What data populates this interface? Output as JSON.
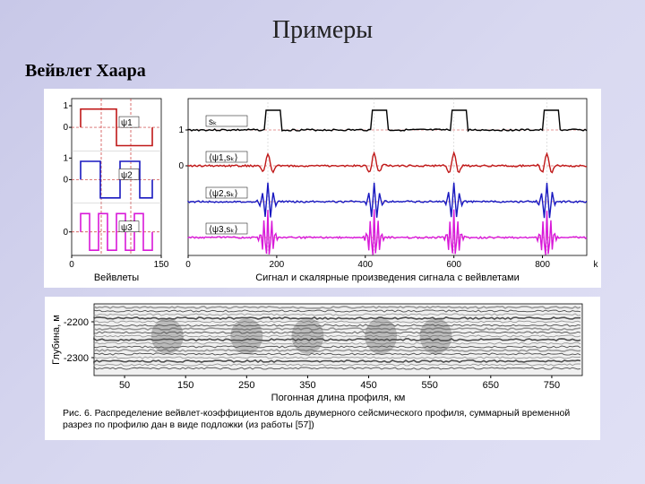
{
  "title": "Примеры",
  "subtitle": "Вейвлет Хаара",
  "colors": {
    "bg": "#ffffff",
    "axis": "#000000",
    "grid": "#c0c0c0",
    "dash": "#c83030",
    "s_k": "#000000",
    "psi1": "#c01818",
    "psi2": "#1818c0",
    "psi3": "#d818d8"
  },
  "left_panel": {
    "caption": "Вейвлеты",
    "x_ticks": [
      0,
      150
    ],
    "panels": [
      {
        "label": "ψ1",
        "ylim": [
          -1,
          1
        ],
        "yticks": [
          0,
          1
        ],
        "color_key": "psi1",
        "shape": "haar1"
      },
      {
        "label": "ψ2",
        "ylim": [
          -1,
          1
        ],
        "yticks": [
          0,
          1
        ],
        "color_key": "psi2",
        "shape": "haar2"
      },
      {
        "label": "ψ3",
        "ylim": [
          -1,
          1
        ],
        "yticks": [
          0
        ],
        "color_key": "psi3",
        "shape": "haar3"
      }
    ]
  },
  "right_panel": {
    "caption": "Сигнал и скалярные произведения сигнала с вейвлетами",
    "xlim": [
      0,
      900
    ],
    "xticks": [
      0,
      200,
      400,
      600,
      800
    ],
    "xlabel": "k",
    "series": [
      {
        "label": "s_k",
        "label_tex": "sₖ",
        "color_key": "s_k",
        "baseline": 35,
        "amp": 22,
        "type": "pulse",
        "y_tick": "1"
      },
      {
        "label": "psi1sk",
        "label_tex": "⟨ψ1,sₖ⟩",
        "color_key": "psi1",
        "baseline": 75,
        "amp": 14,
        "type": "wavelet",
        "y_tick": "0"
      },
      {
        "label": "psi2sk",
        "label_tex": "⟨ψ2,sₖ⟩",
        "color_key": "psi2",
        "baseline": 115,
        "amp": 18,
        "type": "wavelet2",
        "y_tick": ""
      },
      {
        "label": "psi3sk",
        "label_tex": "⟨ψ3,sₖ⟩",
        "color_key": "psi3",
        "baseline": 155,
        "amp": 22,
        "type": "wavelet3",
        "y_tick": ""
      }
    ],
    "event_x": [
      180,
      420,
      600,
      810
    ]
  },
  "seismic": {
    "ylabel": "Глубина, м",
    "xlabel": "Погонная длина профиля, км",
    "yticks": [
      -2200,
      -2300
    ],
    "xticks": [
      50,
      150,
      250,
      350,
      450,
      550,
      650,
      750
    ],
    "xlim": [
      0,
      800
    ],
    "caption": "Рис. 6. Распределение вейвлет-коэффициентов вдоль двумерного сейсмического профиля, суммарный временной разрез по профилю дан в виде подложки (из работы [57])"
  }
}
